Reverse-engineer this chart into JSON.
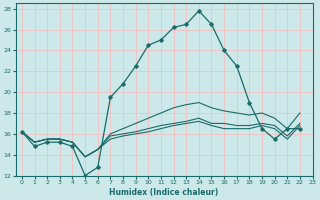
{
  "xlabel": "Humidex (Indice chaleur)",
  "background_color": "#cce8e8",
  "grid_color": "#f0c0c0",
  "line_color": "#1a6b6b",
  "xlim": [
    -0.5,
    23
  ],
  "ylim": [
    12,
    28.5
  ],
  "xticks": [
    0,
    1,
    2,
    3,
    4,
    5,
    6,
    7,
    8,
    9,
    10,
    11,
    12,
    13,
    14,
    15,
    16,
    17,
    18,
    19,
    20,
    21,
    22,
    23
  ],
  "yticks": [
    12,
    14,
    16,
    18,
    20,
    22,
    24,
    26,
    28
  ],
  "x_values": [
    0,
    1,
    2,
    3,
    4,
    5,
    6,
    7,
    8,
    9,
    10,
    11,
    12,
    13,
    14,
    15,
    16,
    17,
    18,
    19,
    20,
    21,
    22
  ],
  "line_main": [
    16.2,
    14.8,
    15.2,
    15.2,
    14.8,
    12.0,
    12.8,
    19.5,
    20.8,
    22.5,
    24.5,
    25.0,
    26.2,
    26.5,
    27.8,
    26.5,
    24.0,
    22.5,
    19.0,
    16.5,
    15.5,
    16.5,
    16.5
  ],
  "line2": [
    16.2,
    15.2,
    15.5,
    15.5,
    15.2,
    13.8,
    14.5,
    15.5,
    15.8,
    16.0,
    16.2,
    16.5,
    16.8,
    17.0,
    17.2,
    16.8,
    16.5,
    16.5,
    16.5,
    16.8,
    16.5,
    15.5,
    16.8
  ],
  "line3": [
    16.2,
    15.2,
    15.5,
    15.5,
    15.2,
    13.8,
    14.5,
    15.8,
    16.0,
    16.2,
    16.5,
    16.8,
    17.0,
    17.2,
    17.5,
    17.0,
    17.0,
    16.8,
    16.8,
    17.0,
    16.8,
    15.8,
    17.0
  ],
  "line4": [
    16.2,
    15.2,
    15.5,
    15.5,
    15.2,
    13.8,
    14.5,
    16.0,
    16.5,
    17.0,
    17.5,
    18.0,
    18.5,
    18.8,
    19.0,
    18.5,
    18.2,
    18.0,
    17.8,
    18.0,
    17.5,
    16.5,
    18.0
  ]
}
